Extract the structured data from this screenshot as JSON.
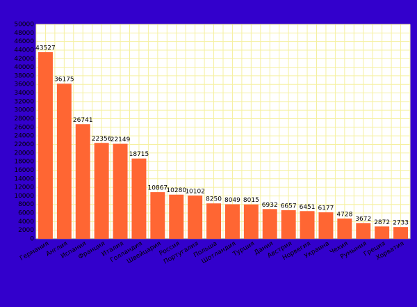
{
  "chart_data": {
    "type": "bar",
    "categories": [
      "Германия",
      "Англия",
      "Испания",
      "Франция",
      "Италия",
      "Голландия",
      "Швейцария",
      "Россия",
      "Португалия",
      "Польша",
      "Шотландия",
      "Турция",
      "Дания",
      "Австрия",
      "Норвегия",
      "Украина",
      "Чехия",
      "Румыния",
      "Греция",
      "Хорватия"
    ],
    "values": [
      43527,
      36175,
      26741,
      22356,
      22149,
      18715,
      10867,
      10280,
      10102,
      8250,
      8049,
      8015,
      6932,
      6657,
      6451,
      6177,
      4728,
      3672,
      2872,
      2733
    ],
    "color": "#ff6633",
    "ylim": [
      0,
      50000
    ],
    "yticks": [
      0,
      2000,
      4000,
      6000,
      8000,
      10000,
      12000,
      14000,
      16000,
      18000,
      20000,
      22000,
      24000,
      26000,
      28000,
      30000,
      32000,
      34000,
      36000,
      38000,
      40000,
      42000,
      44000,
      46000,
      48000,
      50000
    ],
    "grid": true
  }
}
